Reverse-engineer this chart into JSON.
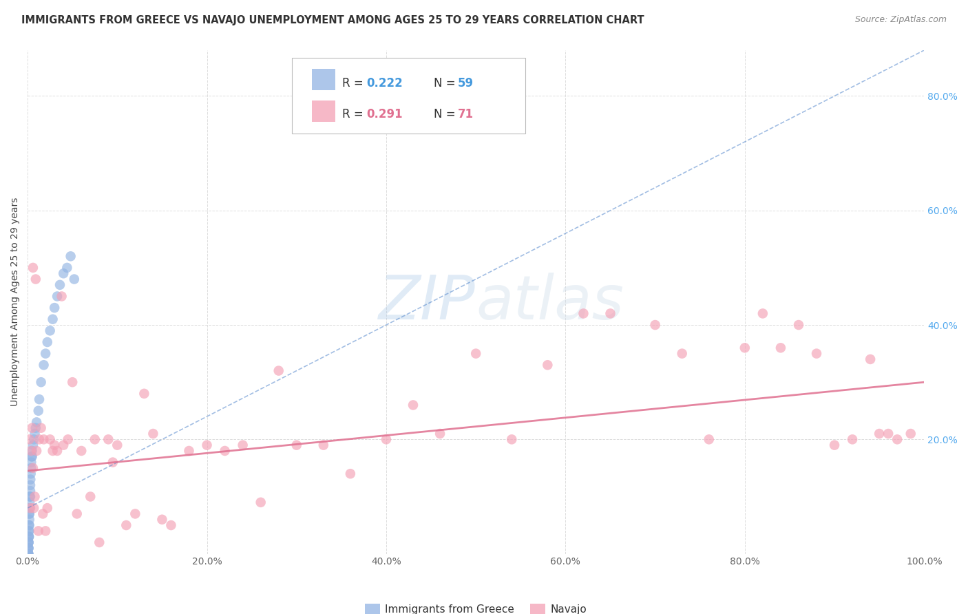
{
  "title": "IMMIGRANTS FROM GREECE VS NAVAJO UNEMPLOYMENT AMONG AGES 25 TO 29 YEARS CORRELATION CHART",
  "source": "Source: ZipAtlas.com",
  "ylabel": "Unemployment Among Ages 25 to 29 years",
  "legend_label_blue": "Immigrants from Greece",
  "legend_label_pink": "Navajo",
  "R_blue": "0.222",
  "N_blue": "59",
  "R_pink": "0.291",
  "N_pink": "71",
  "watermark": "ZIPatlas",
  "blue_color": "#92b4e3",
  "pink_color": "#f4a0b5",
  "blue_line_color": "#5588cc",
  "pink_line_color": "#e07090",
  "blue_text_color": "#4499dd",
  "pink_text_color": "#e07090",
  "ytick_color": "#55aaee",
  "title_color": "#333333",
  "source_color": "#888888",
  "grid_color": "#dddddd",
  "xlim": [
    0,
    1.0
  ],
  "ylim": [
    0,
    0.88
  ],
  "xticks": [
    0.0,
    0.2,
    0.4,
    0.6,
    0.8,
    1.0
  ],
  "yticks": [
    0.0,
    0.2,
    0.4,
    0.6,
    0.8
  ],
  "xticklabels": [
    "0.0%",
    "20.0%",
    "40.0%",
    "60.0%",
    "80.0%",
    "100.0%"
  ],
  "yticklabels": [
    "",
    "20.0%",
    "40.0%",
    "60.0%",
    "80.0%"
  ],
  "greece_x": [
    0.0002,
    0.0003,
    0.0004,
    0.0005,
    0.0005,
    0.0006,
    0.0007,
    0.0008,
    0.0009,
    0.001,
    0.001,
    0.001,
    0.001,
    0.001,
    0.001,
    0.0012,
    0.0013,
    0.0014,
    0.0015,
    0.0015,
    0.0016,
    0.0017,
    0.0018,
    0.002,
    0.002,
    0.002,
    0.0022,
    0.0023,
    0.0025,
    0.003,
    0.003,
    0.003,
    0.0032,
    0.0035,
    0.004,
    0.004,
    0.0045,
    0.005,
    0.005,
    0.006,
    0.007,
    0.008,
    0.009,
    0.01,
    0.012,
    0.013,
    0.015,
    0.018,
    0.02,
    0.022,
    0.025,
    0.028,
    0.03,
    0.033,
    0.036,
    0.04,
    0.044,
    0.048,
    0.052
  ],
  "greece_y": [
    0.0,
    0.0,
    0.0,
    0.0,
    0.0,
    0.0,
    0.0,
    0.0,
    0.0,
    0.0,
    0.01,
    0.01,
    0.01,
    0.02,
    0.02,
    0.02,
    0.03,
    0.03,
    0.03,
    0.04,
    0.04,
    0.05,
    0.05,
    0.06,
    0.07,
    0.07,
    0.08,
    0.09,
    0.1,
    0.1,
    0.11,
    0.12,
    0.13,
    0.14,
    0.15,
    0.16,
    0.17,
    0.17,
    0.18,
    0.19,
    0.2,
    0.21,
    0.22,
    0.23,
    0.25,
    0.27,
    0.3,
    0.33,
    0.35,
    0.37,
    0.39,
    0.41,
    0.43,
    0.45,
    0.47,
    0.49,
    0.5,
    0.52,
    0.48
  ],
  "navajo_x": [
    0.002,
    0.003,
    0.004,
    0.005,
    0.006,
    0.006,
    0.007,
    0.008,
    0.009,
    0.01,
    0.012,
    0.013,
    0.015,
    0.017,
    0.018,
    0.02,
    0.022,
    0.025,
    0.028,
    0.03,
    0.033,
    0.038,
    0.04,
    0.045,
    0.05,
    0.055,
    0.06,
    0.07,
    0.075,
    0.08,
    0.09,
    0.095,
    0.1,
    0.11,
    0.12,
    0.13,
    0.14,
    0.15,
    0.16,
    0.18,
    0.2,
    0.22,
    0.24,
    0.26,
    0.28,
    0.3,
    0.33,
    0.36,
    0.4,
    0.43,
    0.46,
    0.5,
    0.54,
    0.58,
    0.62,
    0.65,
    0.7,
    0.73,
    0.76,
    0.8,
    0.82,
    0.84,
    0.86,
    0.88,
    0.9,
    0.92,
    0.94,
    0.95,
    0.96,
    0.97,
    0.985
  ],
  "navajo_y": [
    0.2,
    0.08,
    0.18,
    0.22,
    0.15,
    0.5,
    0.08,
    0.1,
    0.48,
    0.18,
    0.04,
    0.2,
    0.22,
    0.07,
    0.2,
    0.04,
    0.08,
    0.2,
    0.18,
    0.19,
    0.18,
    0.45,
    0.19,
    0.2,
    0.3,
    0.07,
    0.18,
    0.1,
    0.2,
    0.02,
    0.2,
    0.16,
    0.19,
    0.05,
    0.07,
    0.28,
    0.21,
    0.06,
    0.05,
    0.18,
    0.19,
    0.18,
    0.19,
    0.09,
    0.32,
    0.19,
    0.19,
    0.14,
    0.2,
    0.26,
    0.21,
    0.35,
    0.2,
    0.33,
    0.42,
    0.42,
    0.4,
    0.35,
    0.2,
    0.36,
    0.42,
    0.36,
    0.4,
    0.35,
    0.19,
    0.2,
    0.34,
    0.21,
    0.21,
    0.2,
    0.21
  ],
  "greece_line_x0": 0.0,
  "greece_line_x1": 1.0,
  "greece_line_y0": 0.08,
  "greece_line_y1": 0.88,
  "navajo_line_x0": 0.0,
  "navajo_line_x1": 1.0,
  "navajo_line_y0": 0.145,
  "navajo_line_y1": 0.3
}
